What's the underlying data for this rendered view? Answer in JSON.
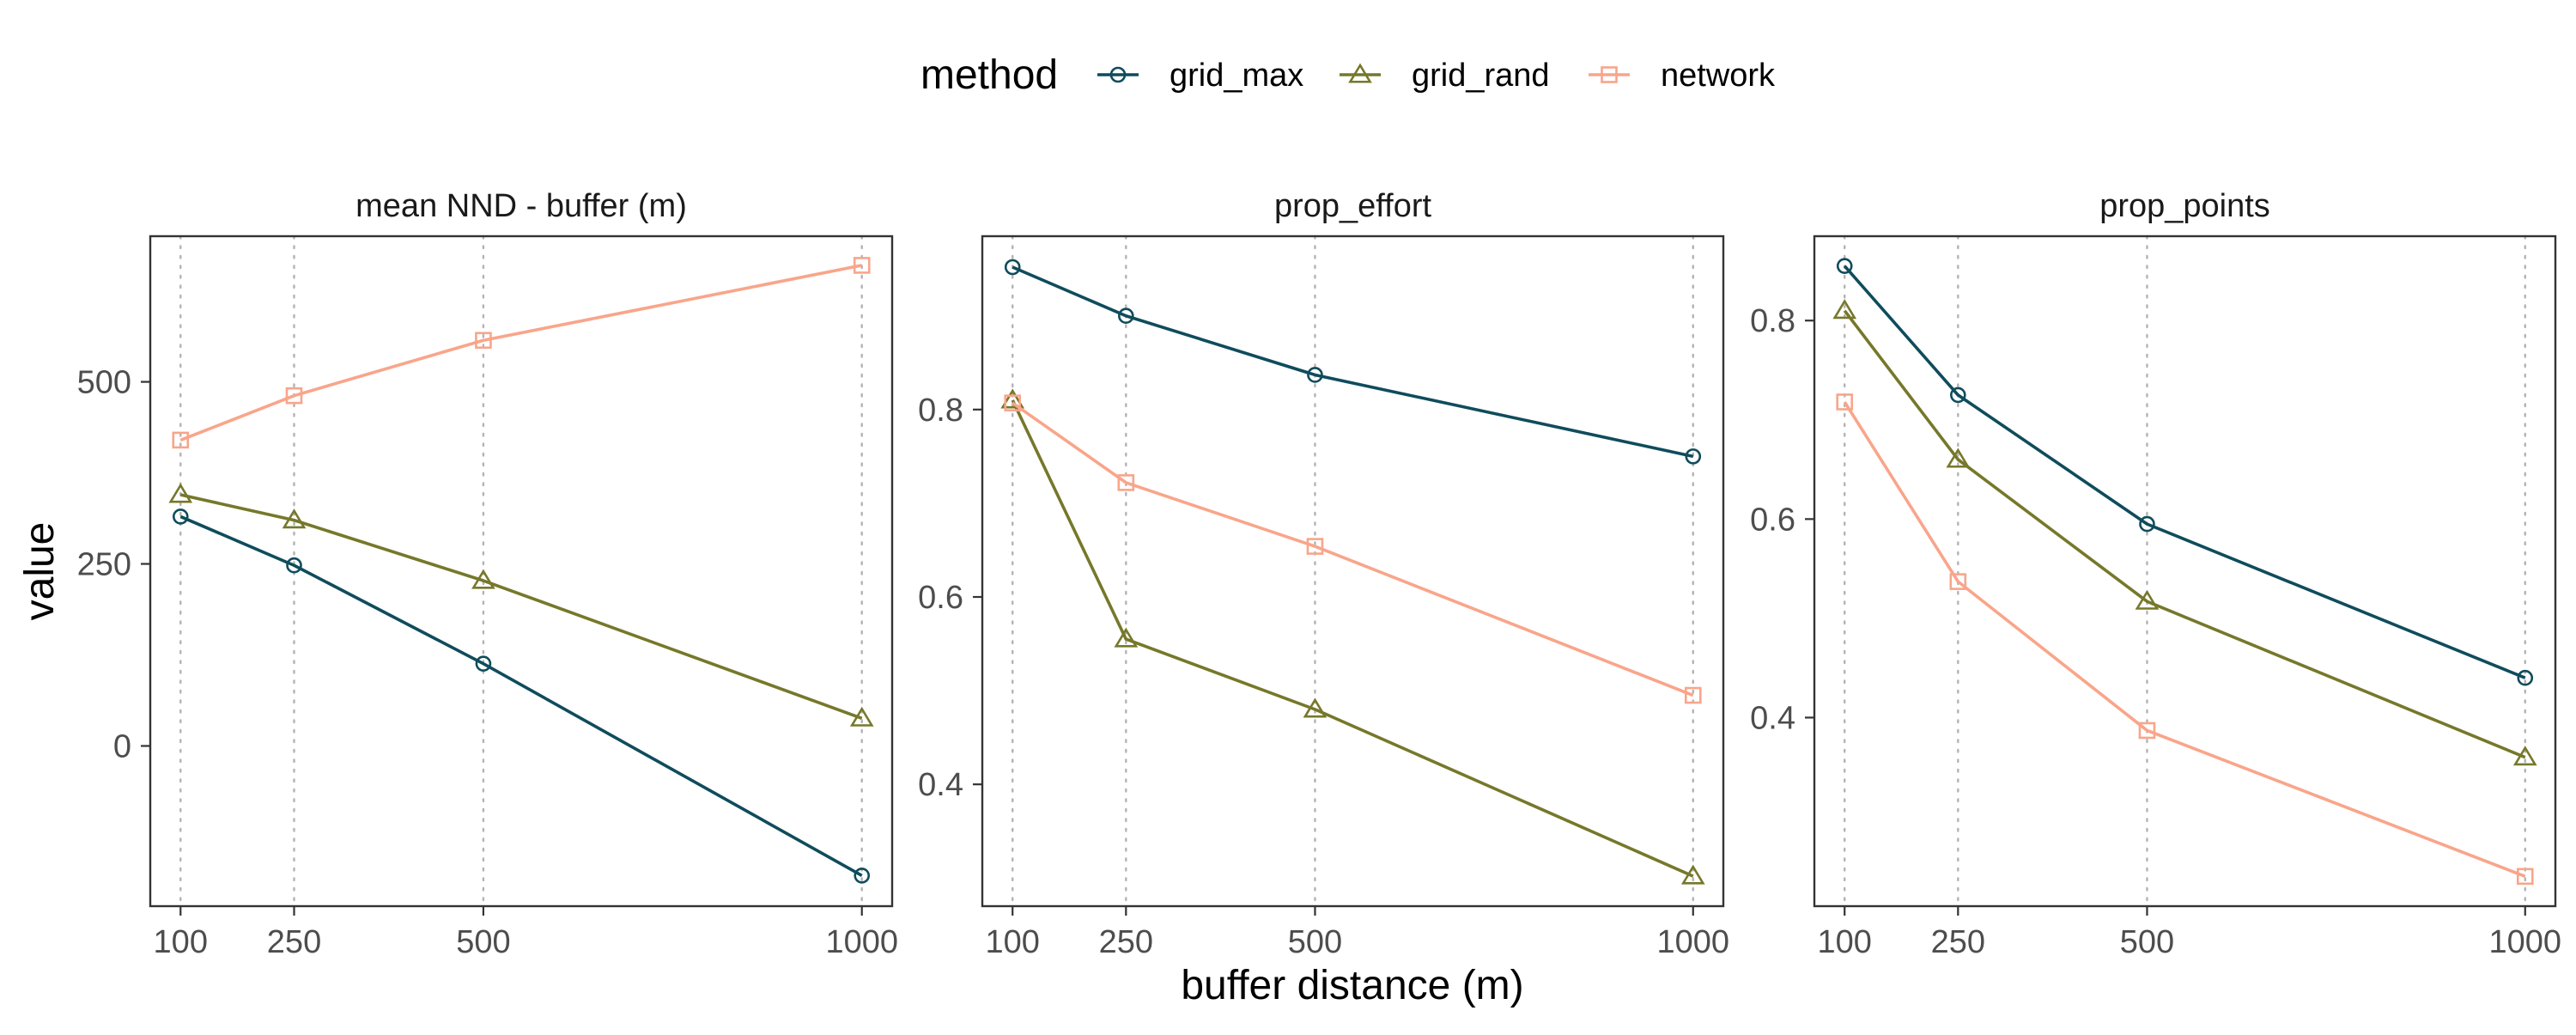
{
  "legend": {
    "title": "method",
    "entries": [
      {
        "label": "grid_max",
        "color": "#0f4c5c",
        "marker": "circle"
      },
      {
        "label": "grid_rand",
        "color": "#76782a",
        "marker": "triangle"
      },
      {
        "label": "network",
        "color": "#f9a58a",
        "marker": "square"
      }
    ]
  },
  "axes": {
    "xlabel": "buffer distance (m)",
    "ylabel": "value"
  },
  "chart_data": [
    {
      "type": "line",
      "title": "mean NND - buffer (m)",
      "x": [
        100,
        250,
        500,
        1000
      ],
      "xticks": [
        "100",
        "250",
        "500",
        "1000"
      ],
      "xlim": [
        60,
        1040
      ],
      "yticks": [
        0,
        250,
        500
      ],
      "ytick_labels": [
        "0",
        "250",
        "500"
      ],
      "ylim": [
        -220,
        700
      ],
      "grid": "vertical dotted at x ticks",
      "series": [
        {
          "name": "grid_max",
          "values": [
            315,
            248,
            113,
            -178
          ]
        },
        {
          "name": "grid_rand",
          "values": [
            345,
            310,
            227,
            38
          ]
        },
        {
          "name": "network",
          "values": [
            420,
            481,
            557,
            660
          ]
        }
      ]
    },
    {
      "type": "line",
      "title": "prop_effort",
      "x": [
        100,
        250,
        500,
        1000
      ],
      "xticks": [
        "100",
        "250",
        "500",
        "1000"
      ],
      "xlim": [
        60,
        1040
      ],
      "yticks": [
        0.4,
        0.6,
        0.8
      ],
      "ytick_labels": [
        "0.4",
        "0.6",
        "0.8"
      ],
      "ylim": [
        0.27,
        0.985
      ],
      "grid": "vertical dotted at x ticks",
      "series": [
        {
          "name": "grid_max",
          "values": [
            0.952,
            0.9,
            0.837,
            0.75
          ]
        },
        {
          "name": "grid_rand",
          "values": [
            0.81,
            0.555,
            0.48,
            0.302
          ]
        },
        {
          "name": "network",
          "values": [
            0.807,
            0.722,
            0.654,
            0.495
          ]
        }
      ]
    },
    {
      "type": "line",
      "title": "prop_points",
      "x": [
        100,
        250,
        500,
        1000
      ],
      "xticks": [
        "100",
        "250",
        "500",
        "1000"
      ],
      "xlim": [
        60,
        1040
      ],
      "yticks": [
        0.4,
        0.6,
        0.8
      ],
      "ytick_labels": [
        "0.4",
        "0.6",
        "0.8"
      ],
      "ylim": [
        0.21,
        0.885
      ],
      "grid": "vertical dotted at x ticks",
      "series": [
        {
          "name": "grid_max",
          "values": [
            0.855,
            0.725,
            0.595,
            0.44
          ]
        },
        {
          "name": "grid_rand",
          "values": [
            0.81,
            0.66,
            0.517,
            0.36
          ]
        },
        {
          "name": "network",
          "values": [
            0.718,
            0.537,
            0.387,
            0.24
          ]
        }
      ]
    }
  ]
}
